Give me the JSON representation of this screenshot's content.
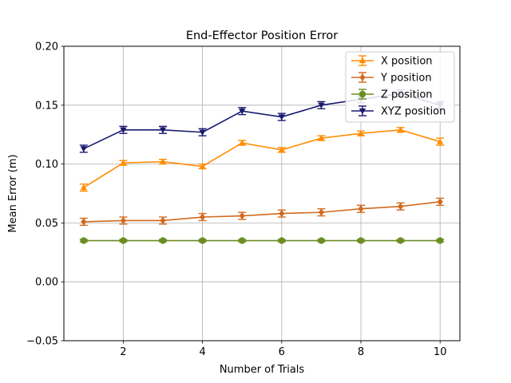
{
  "chart_data": {
    "type": "line",
    "title": "End-Effector Position Error",
    "xlabel": "Number of Trials",
    "ylabel": "Mean Error (m)",
    "xlim": [
      0.5,
      10.5
    ],
    "ylim": [
      -0.05,
      0.2
    ],
    "xticks": [
      2,
      4,
      6,
      8,
      10
    ],
    "yticks": [
      -0.05,
      0.0,
      0.05,
      0.1,
      0.15,
      0.2
    ],
    "ytick_labels": [
      "−0.05",
      "0.00",
      "0.05",
      "0.10",
      "0.15",
      "0.20"
    ],
    "grid": true,
    "legend_position": "top-right",
    "x": [
      1,
      2,
      3,
      4,
      5,
      6,
      7,
      8,
      9,
      10
    ],
    "series": [
      {
        "name": "X position",
        "color": "#ff8c00",
        "marker": "triangle-up",
        "values": [
          0.08,
          0.101,
          0.102,
          0.098,
          0.118,
          0.112,
          0.122,
          0.126,
          0.129,
          0.119
        ],
        "errors": [
          0.003,
          0.002,
          0.002,
          0.002,
          0.002,
          0.002,
          0.002,
          0.002,
          0.002,
          0.003
        ]
      },
      {
        "name": "Y position",
        "color": "#d2691e",
        "marker": "diamond",
        "values": [
          0.051,
          0.052,
          0.052,
          0.055,
          0.056,
          0.058,
          0.059,
          0.062,
          0.064,
          0.068
        ],
        "errors": [
          0.003,
          0.003,
          0.003,
          0.003,
          0.003,
          0.003,
          0.003,
          0.003,
          0.003,
          0.003
        ]
      },
      {
        "name": "Z position",
        "color": "#6b8e23",
        "marker": "circle",
        "values": [
          0.035,
          0.035,
          0.035,
          0.035,
          0.035,
          0.035,
          0.035,
          0.035,
          0.035,
          0.035
        ],
        "errors": [
          0.001,
          0.001,
          0.001,
          0.001,
          0.001,
          0.001,
          0.001,
          0.001,
          0.001,
          0.001
        ]
      },
      {
        "name": "XYZ position",
        "color": "#191970",
        "marker": "triangle-down",
        "values": [
          0.113,
          0.129,
          0.129,
          0.127,
          0.145,
          0.14,
          0.15,
          0.155,
          0.16,
          0.15
        ],
        "errors": [
          0.003,
          0.003,
          0.003,
          0.003,
          0.003,
          0.003,
          0.003,
          0.003,
          0.003,
          0.003
        ]
      }
    ]
  }
}
